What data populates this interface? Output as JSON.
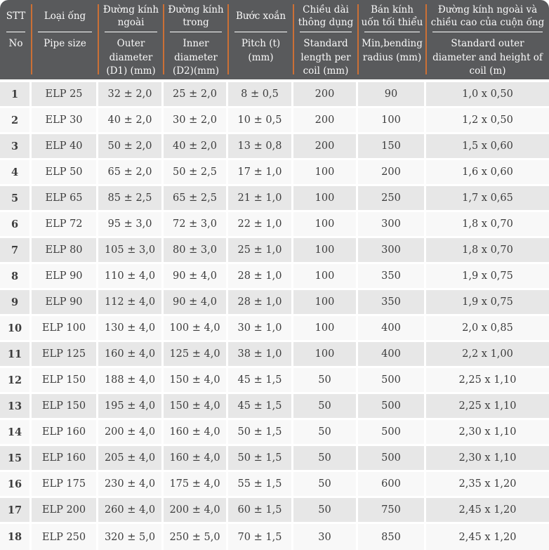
{
  "colors": {
    "header_bg": "#595a5c",
    "accent_orange": "#cc7035",
    "row_odd": "#e7e7e7",
    "row_even": "#f8f8f8",
    "body_text": "#3d3d3d",
    "header_text": "#fafafa"
  },
  "table": {
    "columns": [
      {
        "vi": "STT",
        "en": "No"
      },
      {
        "vi": "Loại ống",
        "en": "Pipe size"
      },
      {
        "vi": "Đường kính ngoài",
        "en": "Outer diameter (D1) (mm)"
      },
      {
        "vi": "Đường kính trong",
        "en": "Inner diameter (D2)(mm)"
      },
      {
        "vi": "Bước xoắn",
        "en": "Pitch (t)(mm)"
      },
      {
        "vi": "Chiều dài thông dụng",
        "en": "Standard length per coil (mm)"
      },
      {
        "vi": "Bán kính uốn tối thiểu",
        "en": "Min,bending radius (mm)"
      },
      {
        "vi": "Đường kính ngoài và chiều cao của cuộn ống",
        "en": "Standard outer diameter and height of coil (m)"
      }
    ],
    "rows": [
      [
        "1",
        "ELP 25",
        "32 ± 2,0",
        "25 ± 2,0",
        "8 ± 0,5",
        "200",
        "90",
        "1,0 x 0,50"
      ],
      [
        "2",
        "ELP 30",
        "40 ± 2,0",
        "30 ± 2,0",
        "10 ± 0,5",
        "200",
        "100",
        "1,2 x 0,50"
      ],
      [
        "3",
        "ELP 40",
        "50 ± 2,0",
        "40 ± 2,0",
        "13 ± 0,8",
        "200",
        "150",
        "1,5 x 0,60"
      ],
      [
        "4",
        "ELP 50",
        "65 ± 2,0",
        "50 ± 2,5",
        "17 ± 1,0",
        "100",
        "200",
        "1,6 x 0,60"
      ],
      [
        "5",
        "ELP 65",
        "85 ± 2,5",
        "65 ± 2,5",
        "21 ± 1,0",
        "100",
        "250",
        "1,7 x 0,65"
      ],
      [
        "6",
        "ELP 72",
        "95 ± 3,0",
        "72 ± 3,0",
        "22 ± 1,0",
        "100",
        "300",
        "1,8 x 0,70"
      ],
      [
        "7",
        "ELP 80",
        "105 ± 3,0",
        "80 ± 3,0",
        "25 ± 1,0",
        "100",
        "300",
        "1,8 x 0,70"
      ],
      [
        "8",
        "ELP 90",
        "110 ± 4,0",
        "90 ± 4,0",
        "28 ± 1,0",
        "100",
        "350",
        "1,9 x 0,75"
      ],
      [
        "9",
        "ELP 90",
        "112 ± 4,0",
        "90 ± 4,0",
        "28 ± 1,0",
        "100",
        "350",
        "1,9 x 0,75"
      ],
      [
        "10",
        "ELP 100",
        "130 ± 4,0",
        "100 ± 4,0",
        "30 ± 1,0",
        "100",
        "400",
        "2,0 x 0,85"
      ],
      [
        "11",
        "ELP 125",
        "160 ± 4,0",
        "125 ± 4,0",
        "38 ± 1,0",
        "100",
        "400",
        "2,2 x 1,00"
      ],
      [
        "12",
        "ELP 150",
        "188 ± 4,0",
        "150 ± 4,0",
        "45 ± 1,5",
        "50",
        "500",
        "2,25 x 1,10"
      ],
      [
        "13",
        "ELP 150",
        "195 ± 4,0",
        "150 ± 4,0",
        "45 ± 1,5",
        "50",
        "500",
        "2,25 x 1,10"
      ],
      [
        "14",
        "ELP 160",
        "200 ± 4,0",
        "160 ± 4,0",
        "50 ± 1,5",
        "50",
        "500",
        "2,30 x 1,10"
      ],
      [
        "15",
        "ELP 160",
        "205 ± 4,0",
        "160 ± 4,0",
        "50 ± 1,5",
        "50",
        "500",
        "2,30 x 1,10"
      ],
      [
        "16",
        "ELP 175",
        "230 ± 4,0",
        "175 ± 4,0",
        "55 ± 1,5",
        "50",
        "600",
        "2,35 x 1,20"
      ],
      [
        "17",
        "ELP 200",
        "260 ± 4,0",
        "200 ± 4,0",
        "60 ± 1,5",
        "50",
        "750",
        "2,45 x 1,20"
      ],
      [
        "18",
        "ELP 250",
        "320 ± 5,0",
        "250 ± 5,0",
        "70 ± 1,5",
        "30",
        "850",
        "2,45 x 1,20"
      ]
    ]
  }
}
